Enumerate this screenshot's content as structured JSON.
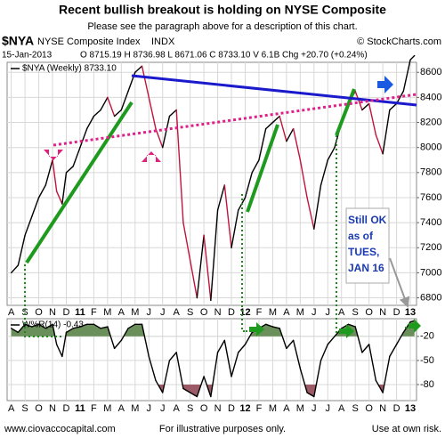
{
  "header": {
    "title": "Recent bullish breakout is holding on NYSE Composite",
    "subtitle": "Please see the paragraph above for a description of this chart."
  },
  "chart_data": [
    {
      "type": "line",
      "symbol": "$NYA",
      "name": "NYSE Composite Index",
      "exchange": "INDX",
      "credit": "© StockCharts.com",
      "date": "15-Jan-2013",
      "quote": "O 8715.19 H 8736.98 L 8671.06 C 8733.10 V 6.1B Chg +20.70 (+0.24%)",
      "x": [
        0,
        0.5,
        1,
        1.5,
        2,
        2.5,
        3,
        3.3,
        3.7,
        4,
        4.5,
        5,
        5.5,
        6,
        6.5,
        7,
        7.5,
        8,
        8.5,
        9,
        9.5,
        10,
        10.5,
        11,
        11.5,
        12,
        12.5,
        13,
        13.5,
        14,
        14.5,
        15,
        15.5,
        16,
        16.5,
        17,
        17.5,
        18,
        18.5,
        19,
        19.5,
        20,
        20.5,
        21,
        21.5,
        22,
        22.5,
        23,
        23.5,
        24,
        24.5,
        25,
        25.5,
        26,
        26.5,
        27,
        27.5,
        28,
        28.5,
        29,
        29.3
      ],
      "xlim": [
        -0.3,
        29.45
      ],
      "xticks": [
        {
          "value": 0,
          "label": "A"
        },
        {
          "value": 1,
          "label": "S"
        },
        {
          "value": 2,
          "label": "O"
        },
        {
          "value": 3,
          "label": "N"
        },
        {
          "value": 4,
          "label": "D"
        },
        {
          "value": 5,
          "label": "11"
        },
        {
          "value": 6,
          "label": "F"
        },
        {
          "value": 7,
          "label": "M"
        },
        {
          "value": 8,
          "label": "A"
        },
        {
          "value": 9,
          "label": "M"
        },
        {
          "value": 10,
          "label": "J"
        },
        {
          "value": 11,
          "label": "J"
        },
        {
          "value": 12,
          "label": "A"
        },
        {
          "value": 13,
          "label": "S"
        },
        {
          "value": 14,
          "label": "O"
        },
        {
          "value": 15,
          "label": "N"
        },
        {
          "value": 16,
          "label": "D"
        },
        {
          "value": 17,
          "label": "12"
        },
        {
          "value": 18,
          "label": "F"
        },
        {
          "value": 19,
          "label": "M"
        },
        {
          "value": 20,
          "label": "A"
        },
        {
          "value": 21,
          "label": "M"
        },
        {
          "value": 22,
          "label": "J"
        },
        {
          "value": 23,
          "label": "J"
        },
        {
          "value": 24,
          "label": "A"
        },
        {
          "value": 25,
          "label": "S"
        },
        {
          "value": 26,
          "label": "O"
        },
        {
          "value": 27,
          "label": "N"
        },
        {
          "value": 28,
          "label": "D"
        },
        {
          "value": 29,
          "label": "13"
        }
      ],
      "series": [
        {
          "name": "$NYA (Weekly) 8733.10",
          "up_color": "#000000",
          "down_color": "#c0143c",
          "values": [
            7000,
            7060,
            7300,
            7450,
            7600,
            7700,
            7900,
            7650,
            7550,
            7800,
            7850,
            8000,
            8150,
            8250,
            8300,
            8400,
            8250,
            8300,
            8450,
            8600,
            8650,
            8400,
            8150,
            8000,
            8250,
            8300,
            7400,
            7100,
            6800,
            7300,
            6780,
            7500,
            7700,
            7200,
            7500,
            7600,
            7800,
            7900,
            8150,
            8200,
            8250,
            8050,
            8150,
            7900,
            7600,
            7350,
            7700,
            7900,
            8000,
            8200,
            8350,
            8450,
            8300,
            8350,
            8100,
            7950,
            8300,
            8350,
            8450,
            8700,
            8733.1
          ]
        }
      ],
      "ylim": [
        6740,
        8680
      ],
      "yticks": [
        6800,
        7000,
        7200,
        7400,
        7600,
        7800,
        8000,
        8200,
        8400,
        8600
      ],
      "grid": true,
      "note": "Still OK as of TUES, JAN 16"
    },
    {
      "type": "line",
      "x": [
        0,
        0.5,
        1,
        1.5,
        2,
        2.5,
        3,
        3.3,
        3.7,
        4,
        4.5,
        5,
        5.5,
        6,
        6.5,
        7,
        7.5,
        8,
        8.5,
        9,
        9.5,
        10,
        10.5,
        11,
        11.5,
        12,
        12.5,
        13,
        13.5,
        14,
        14.5,
        15,
        15.5,
        16,
        16.5,
        17,
        17.5,
        18,
        18.5,
        19,
        19.5,
        20,
        20.5,
        21,
        21.5,
        22,
        22.5,
        23,
        23.5,
        24,
        24.5,
        25,
        25.5,
        26,
        26.5,
        27,
        27.5,
        28,
        28.5,
        29,
        29.3
      ],
      "series": [
        {
          "name": "W%R(14) -0.43",
          "color": "#000000",
          "values": [
            -10,
            -15,
            -5,
            -8,
            -5,
            -10,
            -5,
            -30,
            -45,
            -15,
            -10,
            -8,
            -5,
            -5,
            -10,
            -8,
            -35,
            -25,
            -10,
            -5,
            -5,
            -45,
            -75,
            -90,
            -50,
            -40,
            -85,
            -90,
            -95,
            -70,
            -95,
            -40,
            -25,
            -70,
            -40,
            -30,
            -15,
            -10,
            -5,
            -8,
            -10,
            -35,
            -25,
            -60,
            -90,
            -95,
            -50,
            -30,
            -20,
            -10,
            -5,
            -8,
            -40,
            -30,
            -75,
            -90,
            -45,
            -30,
            -15,
            -2,
            -0.43
          ]
        }
      ],
      "ylim": [
        -100,
        2
      ],
      "yticks": [
        -20,
        -50,
        -80
      ],
      "grid": true,
      "bands": [
        {
          "above": -20,
          "color": "#6a8f5a"
        },
        {
          "below": -80,
          "color": "#9c5a66"
        }
      ]
    }
  ],
  "footer": {
    "left": "www.ciovaccocapital.com",
    "center": "For illustrative purposes only.",
    "right": "Use at own risk."
  }
}
